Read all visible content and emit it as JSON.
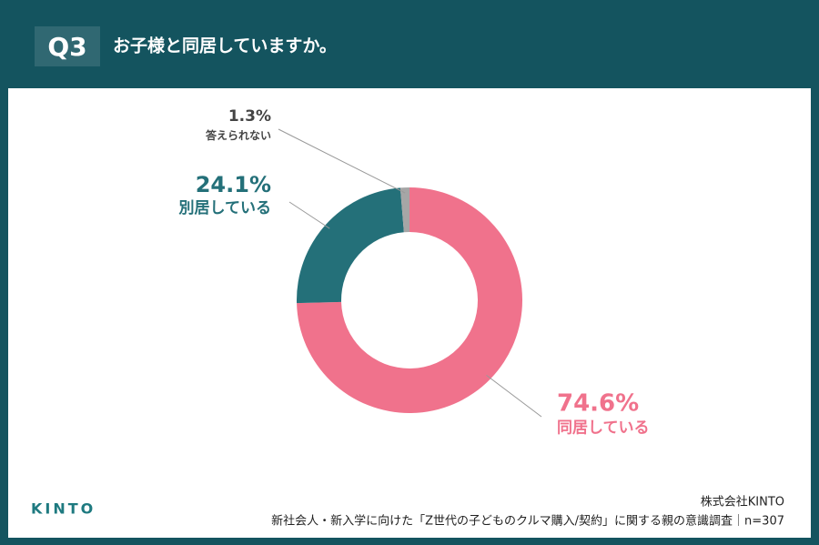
{
  "header": {
    "badge": "Q3"
  },
  "chart_data": {
    "type": "pie",
    "donut": true,
    "title": "お子様と同居していますか。",
    "categories": [
      "同居している",
      "別居している",
      "答えられない"
    ],
    "values": [
      74.6,
      24.1,
      1.3
    ],
    "value_labels": [
      "74.6%",
      "24.1%",
      "1.3%"
    ],
    "colors": [
      "#f0728c",
      "#247079",
      "#a6a6a6"
    ]
  },
  "footer": {
    "brand": "KINTO",
    "company": "株式会社KINTO",
    "source": "新社会人・新入学に向けた「Z世代の子どものクルマ購入/契約」に関する親の意識調査｜n=307"
  }
}
